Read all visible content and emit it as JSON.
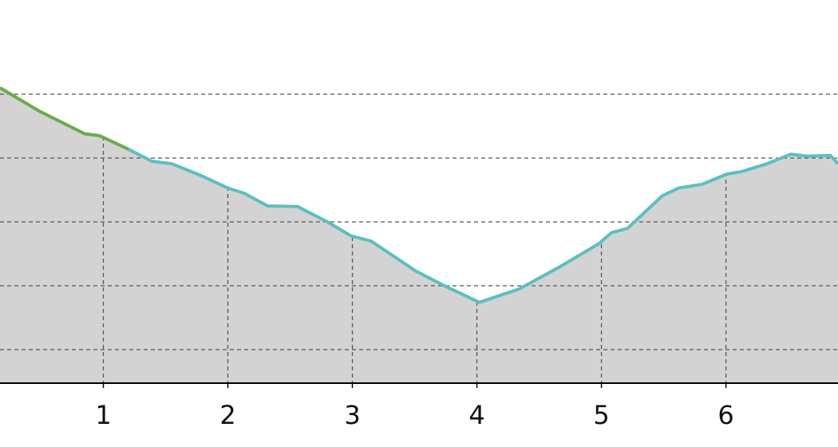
{
  "chart_data": {
    "type": "area",
    "xlim": [
      0.17,
      6.9
    ],
    "xticks": [
      1,
      2,
      3,
      4,
      5,
      6
    ],
    "ylim": [
      0.475,
      6.475
    ],
    "yticks": [
      1,
      2,
      3,
      4,
      5
    ],
    "grid": true,
    "fill_color": "#d3d3d3",
    "series": [
      {
        "color": "#6aab4c",
        "x": [
          0.17,
          0.49,
          0.85,
          0.97,
          1.2
        ],
        "values": [
          5.1,
          4.73,
          4.38,
          4.35,
          4.14
        ]
      },
      {
        "color": "#5bbfbf",
        "x": [
          1.2,
          1.39,
          1.55,
          1.78,
          2.0,
          2.13,
          2.32,
          2.56,
          2.8,
          2.99,
          3.15,
          3.51,
          3.76,
          4.02,
          4.34,
          4.66,
          4.98,
          5.08,
          5.21,
          5.49,
          5.62,
          5.81,
          6.01,
          6.13,
          6.33,
          6.52,
          6.65,
          6.84,
          6.9
        ],
        "values": [
          4.14,
          3.95,
          3.91,
          3.73,
          3.53,
          3.45,
          3.25,
          3.24,
          3.0,
          2.78,
          2.7,
          2.23,
          1.98,
          1.74,
          1.95,
          2.29,
          2.66,
          2.83,
          2.9,
          3.41,
          3.53,
          3.59,
          3.75,
          3.79,
          3.91,
          4.06,
          4.03,
          4.04,
          3.91
        ]
      }
    ]
  }
}
